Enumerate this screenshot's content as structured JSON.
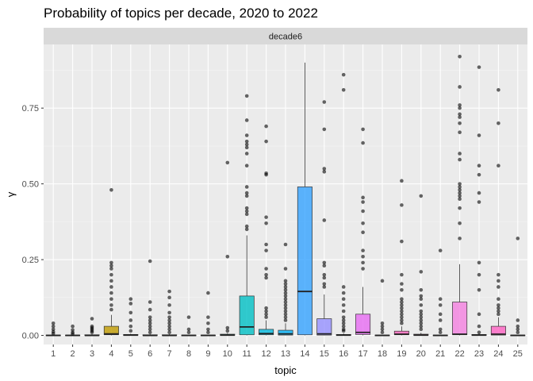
{
  "chart_data": {
    "type": "boxplot",
    "title": "Probability of topics per decade, 2020 to 2022",
    "facet": "decade6",
    "xlabel": "topic",
    "ylabel": "γ",
    "ylim": [
      -0.03,
      0.96
    ],
    "y_ticks": [
      0.0,
      0.25,
      0.5,
      0.75
    ],
    "y_tick_labels": [
      "0.00",
      "0.25",
      "0.50",
      "0.75"
    ],
    "grid": true,
    "legend": "none",
    "categories": [
      "1",
      "2",
      "3",
      "4",
      "5",
      "6",
      "7",
      "8",
      "9",
      "10",
      "11",
      "12",
      "13",
      "14",
      "15",
      "16",
      "17",
      "18",
      "19",
      "20",
      "21",
      "22",
      "23",
      "24",
      "25"
    ],
    "boxes": [
      {
        "topic": "1",
        "color": "#F8766D",
        "q1": 0.0,
        "median": 0.0,
        "q3": 0.001,
        "lo": 0.0,
        "hi": 0.002,
        "outliers": [
          0.04,
          0.03,
          0.02,
          0.012,
          0.006
        ]
      },
      {
        "topic": "2",
        "color": "#EA8331",
        "q1": 0.0,
        "median": 0.0,
        "q3": 0.001,
        "lo": 0.0,
        "hi": 0.002,
        "outliers": [
          0.03,
          0.018,
          0.01,
          0.005
        ]
      },
      {
        "topic": "3",
        "color": "#D89000",
        "q1": 0.0,
        "median": 0.0,
        "q3": 0.002,
        "lo": 0.0,
        "hi": 0.004,
        "outliers": [
          0.055,
          0.03,
          0.025,
          0.02,
          0.015,
          0.01
        ]
      },
      {
        "topic": "4",
        "color": "#C09B00",
        "q1": 0.002,
        "median": 0.005,
        "q3": 0.03,
        "lo": 0.0,
        "hi": 0.068,
        "outliers": [
          0.48,
          0.24,
          0.23,
          0.22,
          0.2,
          0.18,
          0.16,
          0.14,
          0.12,
          0.1,
          0.085
        ]
      },
      {
        "topic": "5",
        "color": "#A3A500",
        "q1": 0.0,
        "median": 0.001,
        "q3": 0.003,
        "lo": 0.0,
        "hi": 0.006,
        "outliers": [
          0.12,
          0.105,
          0.075,
          0.05,
          0.03,
          0.015
        ]
      },
      {
        "topic": "6",
        "color": "#7CAE00",
        "q1": 0.0,
        "median": 0.0,
        "q3": 0.002,
        "lo": 0.0,
        "hi": 0.004,
        "outliers": [
          0.245,
          0.11,
          0.085,
          0.06,
          0.05,
          0.04,
          0.03,
          0.02,
          0.01
        ]
      },
      {
        "topic": "7",
        "color": "#39B600",
        "q1": 0.0,
        "median": 0.0,
        "q3": 0.002,
        "lo": 0.0,
        "hi": 0.004,
        "outliers": [
          0.145,
          0.125,
          0.1,
          0.075,
          0.06,
          0.05,
          0.04,
          0.03,
          0.02,
          0.01
        ]
      },
      {
        "topic": "8",
        "color": "#00BB4E",
        "q1": 0.0,
        "median": 0.0,
        "q3": 0.001,
        "lo": 0.0,
        "hi": 0.002,
        "outliers": [
          0.06,
          0.02,
          0.01
        ]
      },
      {
        "topic": "9",
        "color": "#00BF7D",
        "q1": 0.0,
        "median": 0.0,
        "q3": 0.001,
        "lo": 0.0,
        "hi": 0.002,
        "outliers": [
          0.14,
          0.06,
          0.04,
          0.02,
          0.01
        ]
      },
      {
        "topic": "10",
        "color": "#00C1A3",
        "q1": 0.0,
        "median": 0.001,
        "q3": 0.004,
        "lo": 0.0,
        "hi": 0.008,
        "outliers": [
          0.57,
          0.26,
          0.025,
          0.015
        ]
      },
      {
        "topic": "11",
        "color": "#00BFC4",
        "q1": 0.002,
        "median": 0.028,
        "q3": 0.13,
        "lo": 0.0,
        "hi": 0.33,
        "outliers": [
          0.79,
          0.71,
          0.66,
          0.64,
          0.63,
          0.62,
          0.6,
          0.56,
          0.49,
          0.47,
          0.46,
          0.42,
          0.41,
          0.4,
          0.36,
          0.35
        ]
      },
      {
        "topic": "12",
        "color": "#00BAE0",
        "q1": 0.002,
        "median": 0.006,
        "q3": 0.02,
        "lo": 0.0,
        "hi": 0.05,
        "outliers": [
          0.69,
          0.64,
          0.535,
          0.53,
          0.39,
          0.37,
          0.3,
          0.28,
          0.22,
          0.2,
          0.19,
          0.09,
          0.08,
          0.07,
          0.06
        ]
      },
      {
        "topic": "13",
        "color": "#00B0F6",
        "q1": 0.001,
        "median": 0.005,
        "q3": 0.017,
        "lo": 0.0,
        "hi": 0.04,
        "outliers": [
          0.3,
          0.22,
          0.18,
          0.17,
          0.16,
          0.15,
          0.14,
          0.13,
          0.12,
          0.11,
          0.1,
          0.09,
          0.08,
          0.07,
          0.06,
          0.05
        ]
      },
      {
        "topic": "14",
        "color": "#35A2FF",
        "q1": 0.002,
        "median": 0.145,
        "q3": 0.49,
        "lo": 0.0,
        "hi": 0.9,
        "outliers": []
      },
      {
        "topic": "15",
        "color": "#9590FF",
        "q1": 0.001,
        "median": 0.005,
        "q3": 0.055,
        "lo": 0.0,
        "hi": 0.135,
        "outliers": [
          0.77,
          0.68,
          0.55,
          0.54,
          0.38,
          0.24,
          0.23,
          0.2,
          0.19,
          0.17,
          0.16
        ]
      },
      {
        "topic": "16",
        "color": "#C77CFF",
        "q1": 0.0,
        "median": 0.001,
        "q3": 0.003,
        "lo": 0.0,
        "hi": 0.007,
        "outliers": [
          0.86,
          0.81,
          0.16,
          0.14,
          0.12,
          0.1,
          0.08,
          0.06,
          0.05,
          0.04,
          0.03,
          0.02,
          0.015
        ]
      },
      {
        "topic": "17",
        "color": "#E76BF3",
        "q1": 0.003,
        "median": 0.01,
        "q3": 0.07,
        "lo": 0.0,
        "hi": 0.16,
        "outliers": [
          0.68,
          0.635,
          0.455,
          0.44,
          0.41,
          0.37,
          0.34,
          0.28,
          0.26,
          0.24,
          0.22
        ]
      },
      {
        "topic": "18",
        "color": "#FA62DB",
        "q1": 0.0,
        "median": 0.0,
        "q3": 0.001,
        "lo": 0.0,
        "hi": 0.002,
        "outliers": [
          0.18,
          0.04,
          0.03,
          0.02,
          0.01
        ]
      },
      {
        "topic": "19",
        "color": "#FF62BC",
        "q1": 0.002,
        "median": 0.004,
        "q3": 0.014,
        "lo": 0.0,
        "hi": 0.03,
        "outliers": [
          0.51,
          0.43,
          0.31,
          0.2,
          0.17,
          0.15,
          0.12,
          0.11,
          0.1,
          0.09,
          0.08,
          0.07,
          0.06,
          0.05,
          0.04
        ]
      },
      {
        "topic": "20",
        "color": "#FF6C91",
        "q1": 0.0,
        "median": 0.001,
        "q3": 0.004,
        "lo": 0.0,
        "hi": 0.009,
        "outliers": [
          0.46,
          0.21,
          0.15,
          0.13,
          0.12,
          0.1,
          0.08,
          0.07,
          0.06,
          0.05,
          0.04,
          0.03,
          0.02
        ]
      },
      {
        "topic": "21",
        "color": "#F8766D",
        "q1": 0.0,
        "median": 0.0,
        "q3": 0.001,
        "lo": 0.0,
        "hi": 0.002,
        "outliers": [
          0.28,
          0.12,
          0.1,
          0.07,
          0.05,
          0.02,
          0.01
        ]
      },
      {
        "topic": "22",
        "color": "#F47FE0",
        "q1": 0.002,
        "median": 0.004,
        "q3": 0.11,
        "lo": 0.0,
        "hi": 0.235,
        "outliers": [
          0.92,
          0.82,
          0.76,
          0.75,
          0.73,
          0.72,
          0.7,
          0.67,
          0.6,
          0.58,
          0.5,
          0.49,
          0.48,
          0.47,
          0.46,
          0.45,
          0.42,
          0.37,
          0.32
        ]
      },
      {
        "topic": "23",
        "color": "#E76BF3",
        "q1": 0.0,
        "median": 0.001,
        "q3": 0.003,
        "lo": 0.0,
        "hi": 0.006,
        "outliers": [
          0.885,
          0.66,
          0.56,
          0.53,
          0.47,
          0.44,
          0.24,
          0.2,
          0.15,
          0.07,
          0.03,
          0.01
        ]
      },
      {
        "topic": "24",
        "color": "#FF61C3",
        "q1": 0.001,
        "median": 0.004,
        "q3": 0.03,
        "lo": 0.0,
        "hi": 0.06,
        "outliers": [
          0.81,
          0.7,
          0.56,
          0.2,
          0.18,
          0.16,
          0.12,
          0.1,
          0.09,
          0.08,
          0.07
        ]
      },
      {
        "topic": "25",
        "color": "#FF64B0",
        "q1": 0.0,
        "median": 0.0,
        "q3": 0.001,
        "lo": 0.0,
        "hi": 0.002,
        "outliers": [
          0.32,
          0.05,
          0.03,
          0.02,
          0.01
        ]
      }
    ]
  }
}
